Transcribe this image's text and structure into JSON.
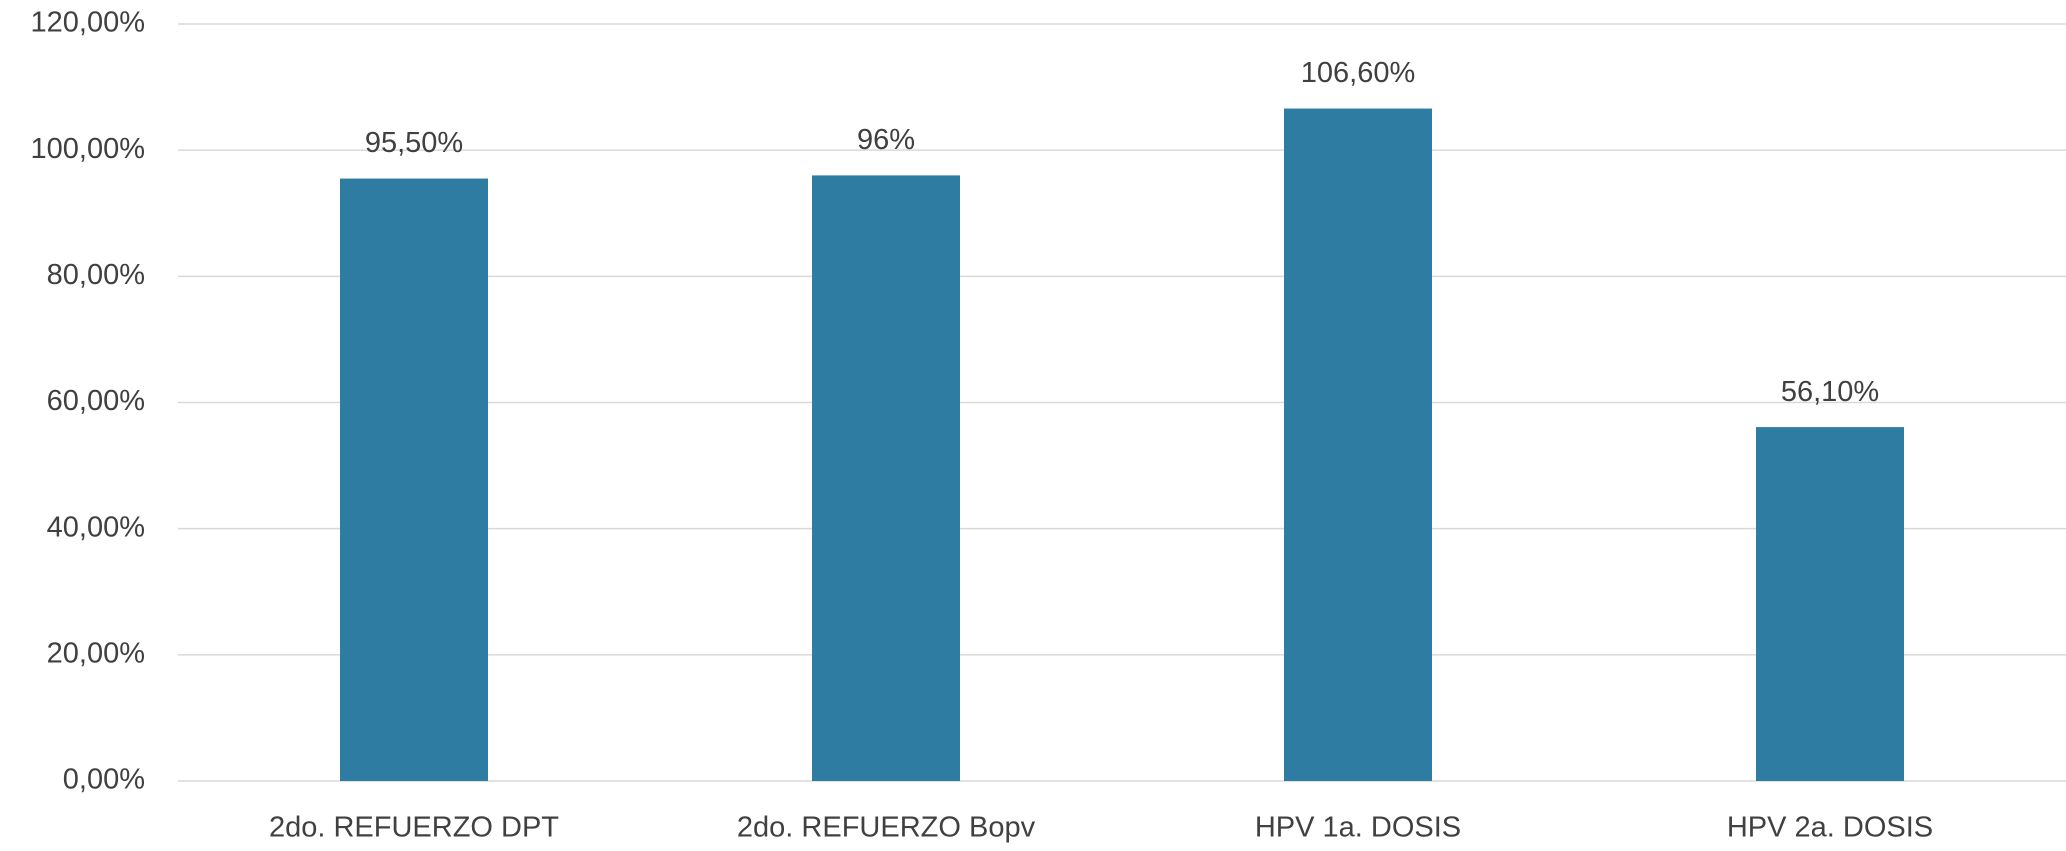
{
  "chart_data": {
    "type": "bar",
    "categories": [
      "2do. REFUERZO DPT",
      "2do. REFUERZO Bopv",
      "HPV 1a. DOSIS",
      "HPV 2a. DOSIS"
    ],
    "values": [
      95.5,
      96,
      106.6,
      56.1
    ],
    "value_labels": [
      "95,50%",
      "96%",
      "106,60%",
      "56,10%"
    ],
    "color": "#2e7ca1",
    "ylim": [
      0,
      120
    ],
    "yticks": [
      {
        "value": 0,
        "label": "0,00%"
      },
      {
        "value": 20,
        "label": "20,00%"
      },
      {
        "value": 40,
        "label": "40,00%"
      },
      {
        "value": 60,
        "label": "60,00%"
      },
      {
        "value": 80,
        "label": "80,00%"
      },
      {
        "value": 100,
        "label": "100,00%"
      },
      {
        "value": 120,
        "label": "120,00%"
      }
    ],
    "grid": true
  }
}
